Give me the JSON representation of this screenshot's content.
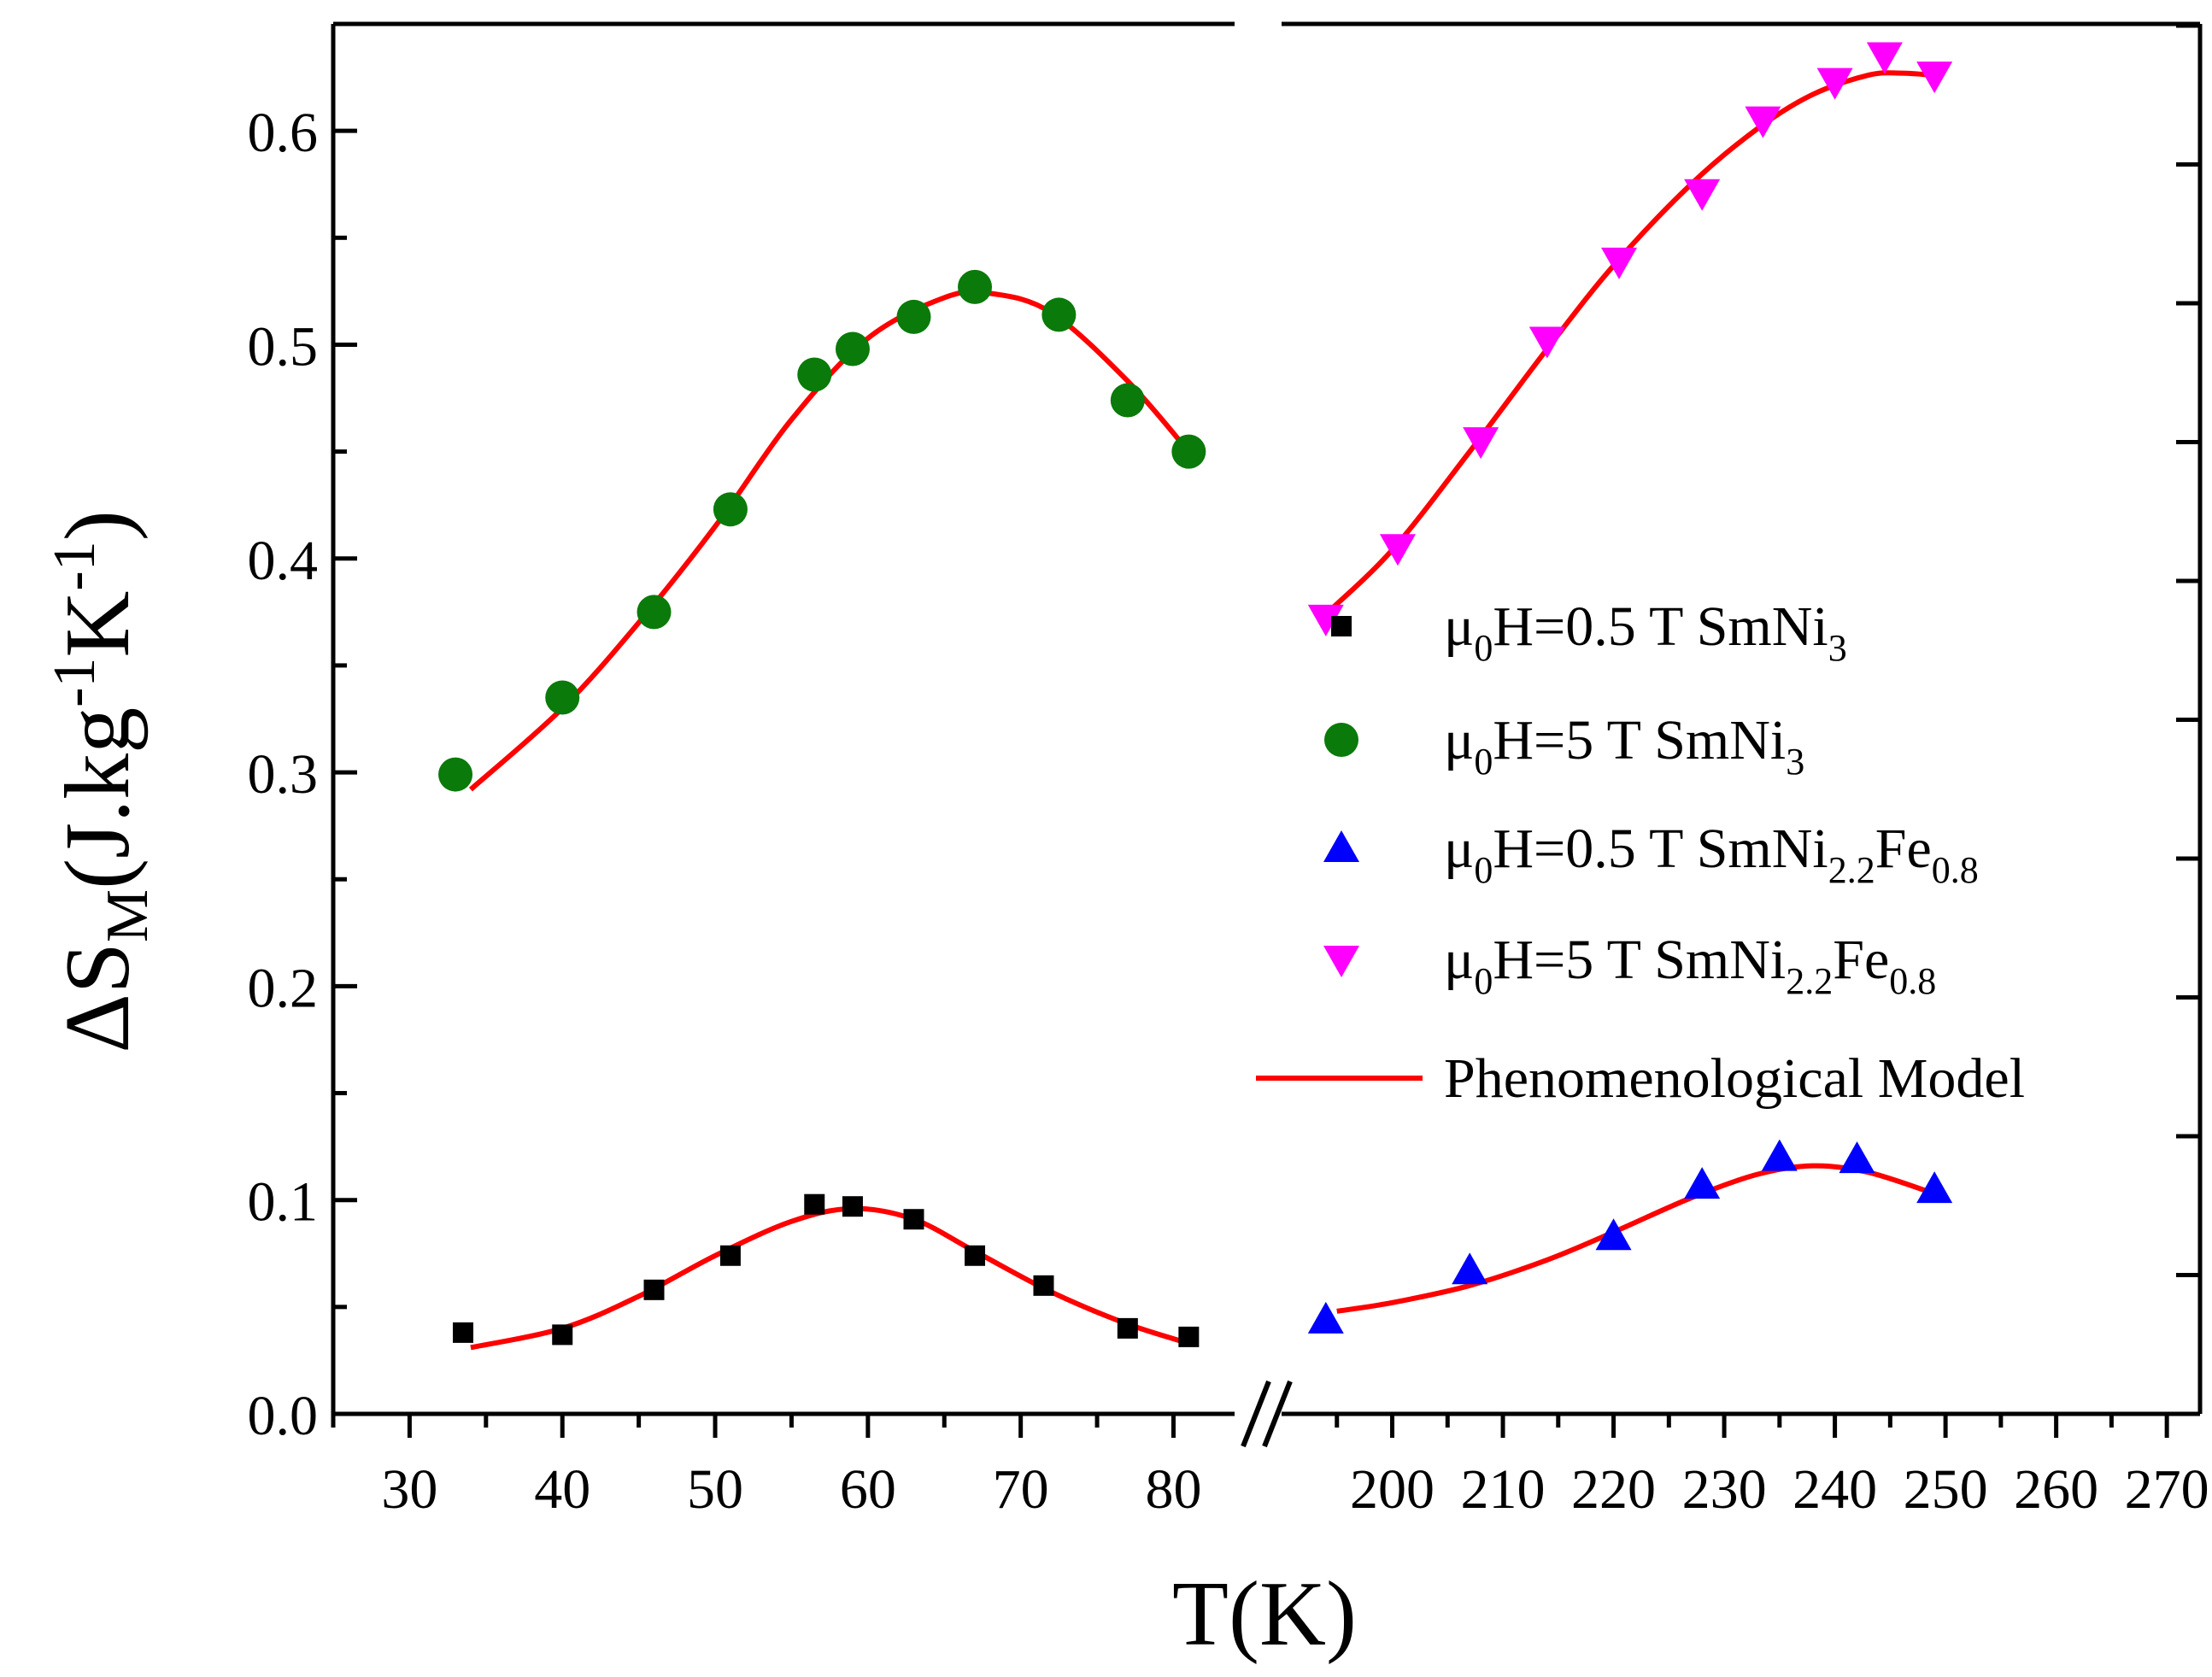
{
  "chart_data": {
    "type": "scatter",
    "title": "",
    "xlabel": "T(K)",
    "ylabel": {
      "base": "ΔS",
      "sub": "M",
      "unit": "(J.kg",
      "exp1": "-1",
      "unit2": "K",
      "exp2": "-1",
      "close": ")"
    },
    "ylim": [
      0,
      0.65
    ],
    "y_ticks": [
      "0.0",
      "0.1",
      "0.2",
      "0.3",
      "0.4",
      "0.5",
      "0.6"
    ],
    "x_segments": [
      {
        "range": [
          25,
          84
        ],
        "ticks": [
          "30",
          "40",
          "50",
          "60",
          "70",
          "80"
        ]
      },
      {
        "range": [
          190,
          273
        ],
        "ticks": [
          "200",
          "210",
          "220",
          "230",
          "240",
          "250",
          "260",
          "270"
        ]
      }
    ],
    "series": [
      {
        "name": "SmNi3 0.5T",
        "color": "#000000",
        "marker": "square",
        "legend": {
          "main": "μ",
          "sub1": "0",
          "mid": "H=0.5 T SmNi",
          "sub2": "3",
          "mid2": "",
          "sub3": ""
        },
        "x": [
          33.5,
          40,
          46,
          51,
          56.5,
          59,
          63,
          67,
          71.5,
          77,
          81
        ],
        "y": [
          0.038,
          0.037,
          0.058,
          0.074,
          0.098,
          0.097,
          0.091,
          0.074,
          0.06,
          0.04,
          0.036
        ]
      },
      {
        "name": "SmNi3 5T",
        "color": "#0a7a0a",
        "marker": "circle",
        "legend": {
          "main": "μ",
          "sub1": "0",
          "mid": "H=5 T   SmNi",
          "sub2": "3",
          "mid2": "",
          "sub3": ""
        },
        "x": [
          33,
          40,
          46,
          51,
          56.5,
          59,
          63,
          67,
          72.5,
          77,
          81
        ],
        "y": [
          0.299,
          0.335,
          0.375,
          0.423,
          0.486,
          0.498,
          0.513,
          0.527,
          0.514,
          0.474,
          0.45
        ]
      },
      {
        "name": "SmNi2.2Fe0.8 0.5T",
        "color": "#0000ff",
        "marker": "triangle-up",
        "legend": {
          "main": "μ",
          "sub1": "0",
          "mid": "H=0.5 T SmNi",
          "sub2": "2.2",
          "mid2": "Fe",
          "sub3": "0.8"
        },
        "x": [
          194,
          207,
          220,
          228,
          235,
          242,
          249
        ],
        "y": [
          0.044,
          0.067,
          0.083,
          0.107,
          0.12,
          0.119,
          0.105
        ]
      },
      {
        "name": "SmNi2.2Fe0.8 5T",
        "color": "#ff00ff",
        "marker": "triangle-down",
        "legend": {
          "main": "μ",
          "sub1": "0",
          "mid": "H=5 T   SmNi",
          "sub2": "2.2",
          "mid2": "Fe",
          "sub3": "0.8"
        },
        "x": [
          194,
          200.5,
          208,
          214,
          220.5,
          228,
          233.5,
          240,
          244.5,
          249
        ],
        "y": [
          0.372,
          0.405,
          0.455,
          0.502,
          0.539,
          0.571,
          0.605,
          0.623,
          0.635,
          0.626
        ]
      }
    ],
    "fits": [
      {
        "name": "fit SmNi3 0.5T",
        "color": "#ff0000",
        "x": [
          34,
          40,
          45,
          50,
          55,
          59,
          63,
          67,
          72,
          77,
          81
        ],
        "y": [
          0.031,
          0.04,
          0.055,
          0.074,
          0.09,
          0.096,
          0.091,
          0.076,
          0.057,
          0.042,
          0.033
        ]
      },
      {
        "name": "fit SmNi3 5T",
        "color": "#ff0000",
        "x": [
          34,
          40,
          45,
          50,
          55,
          60,
          65,
          68,
          72,
          77,
          81
        ],
        "y": [
          0.292,
          0.33,
          0.37,
          0.415,
          0.465,
          0.503,
          0.522,
          0.524,
          0.515,
          0.483,
          0.45
        ]
      },
      {
        "name": "fit SmNi2.2Fe0.8 0.5T",
        "color": "#ff0000",
        "x": [
          195,
          200,
          207,
          214,
          220,
          227,
          233,
          238,
          243,
          249
        ],
        "y": [
          0.048,
          0.052,
          0.06,
          0.072,
          0.085,
          0.101,
          0.112,
          0.116,
          0.113,
          0.103
        ]
      },
      {
        "name": "fit SmNi2.2Fe0.8 5T",
        "color": "#ff0000",
        "x": [
          194,
          200,
          207,
          214,
          220,
          227,
          233,
          238,
          243,
          246,
          249
        ],
        "y": [
          0.374,
          0.404,
          0.45,
          0.498,
          0.537,
          0.575,
          0.601,
          0.617,
          0.626,
          0.627,
          0.626
        ]
      }
    ],
    "legend_fit_label": "Phenomenological Model",
    "legend_position": "right-middle"
  }
}
